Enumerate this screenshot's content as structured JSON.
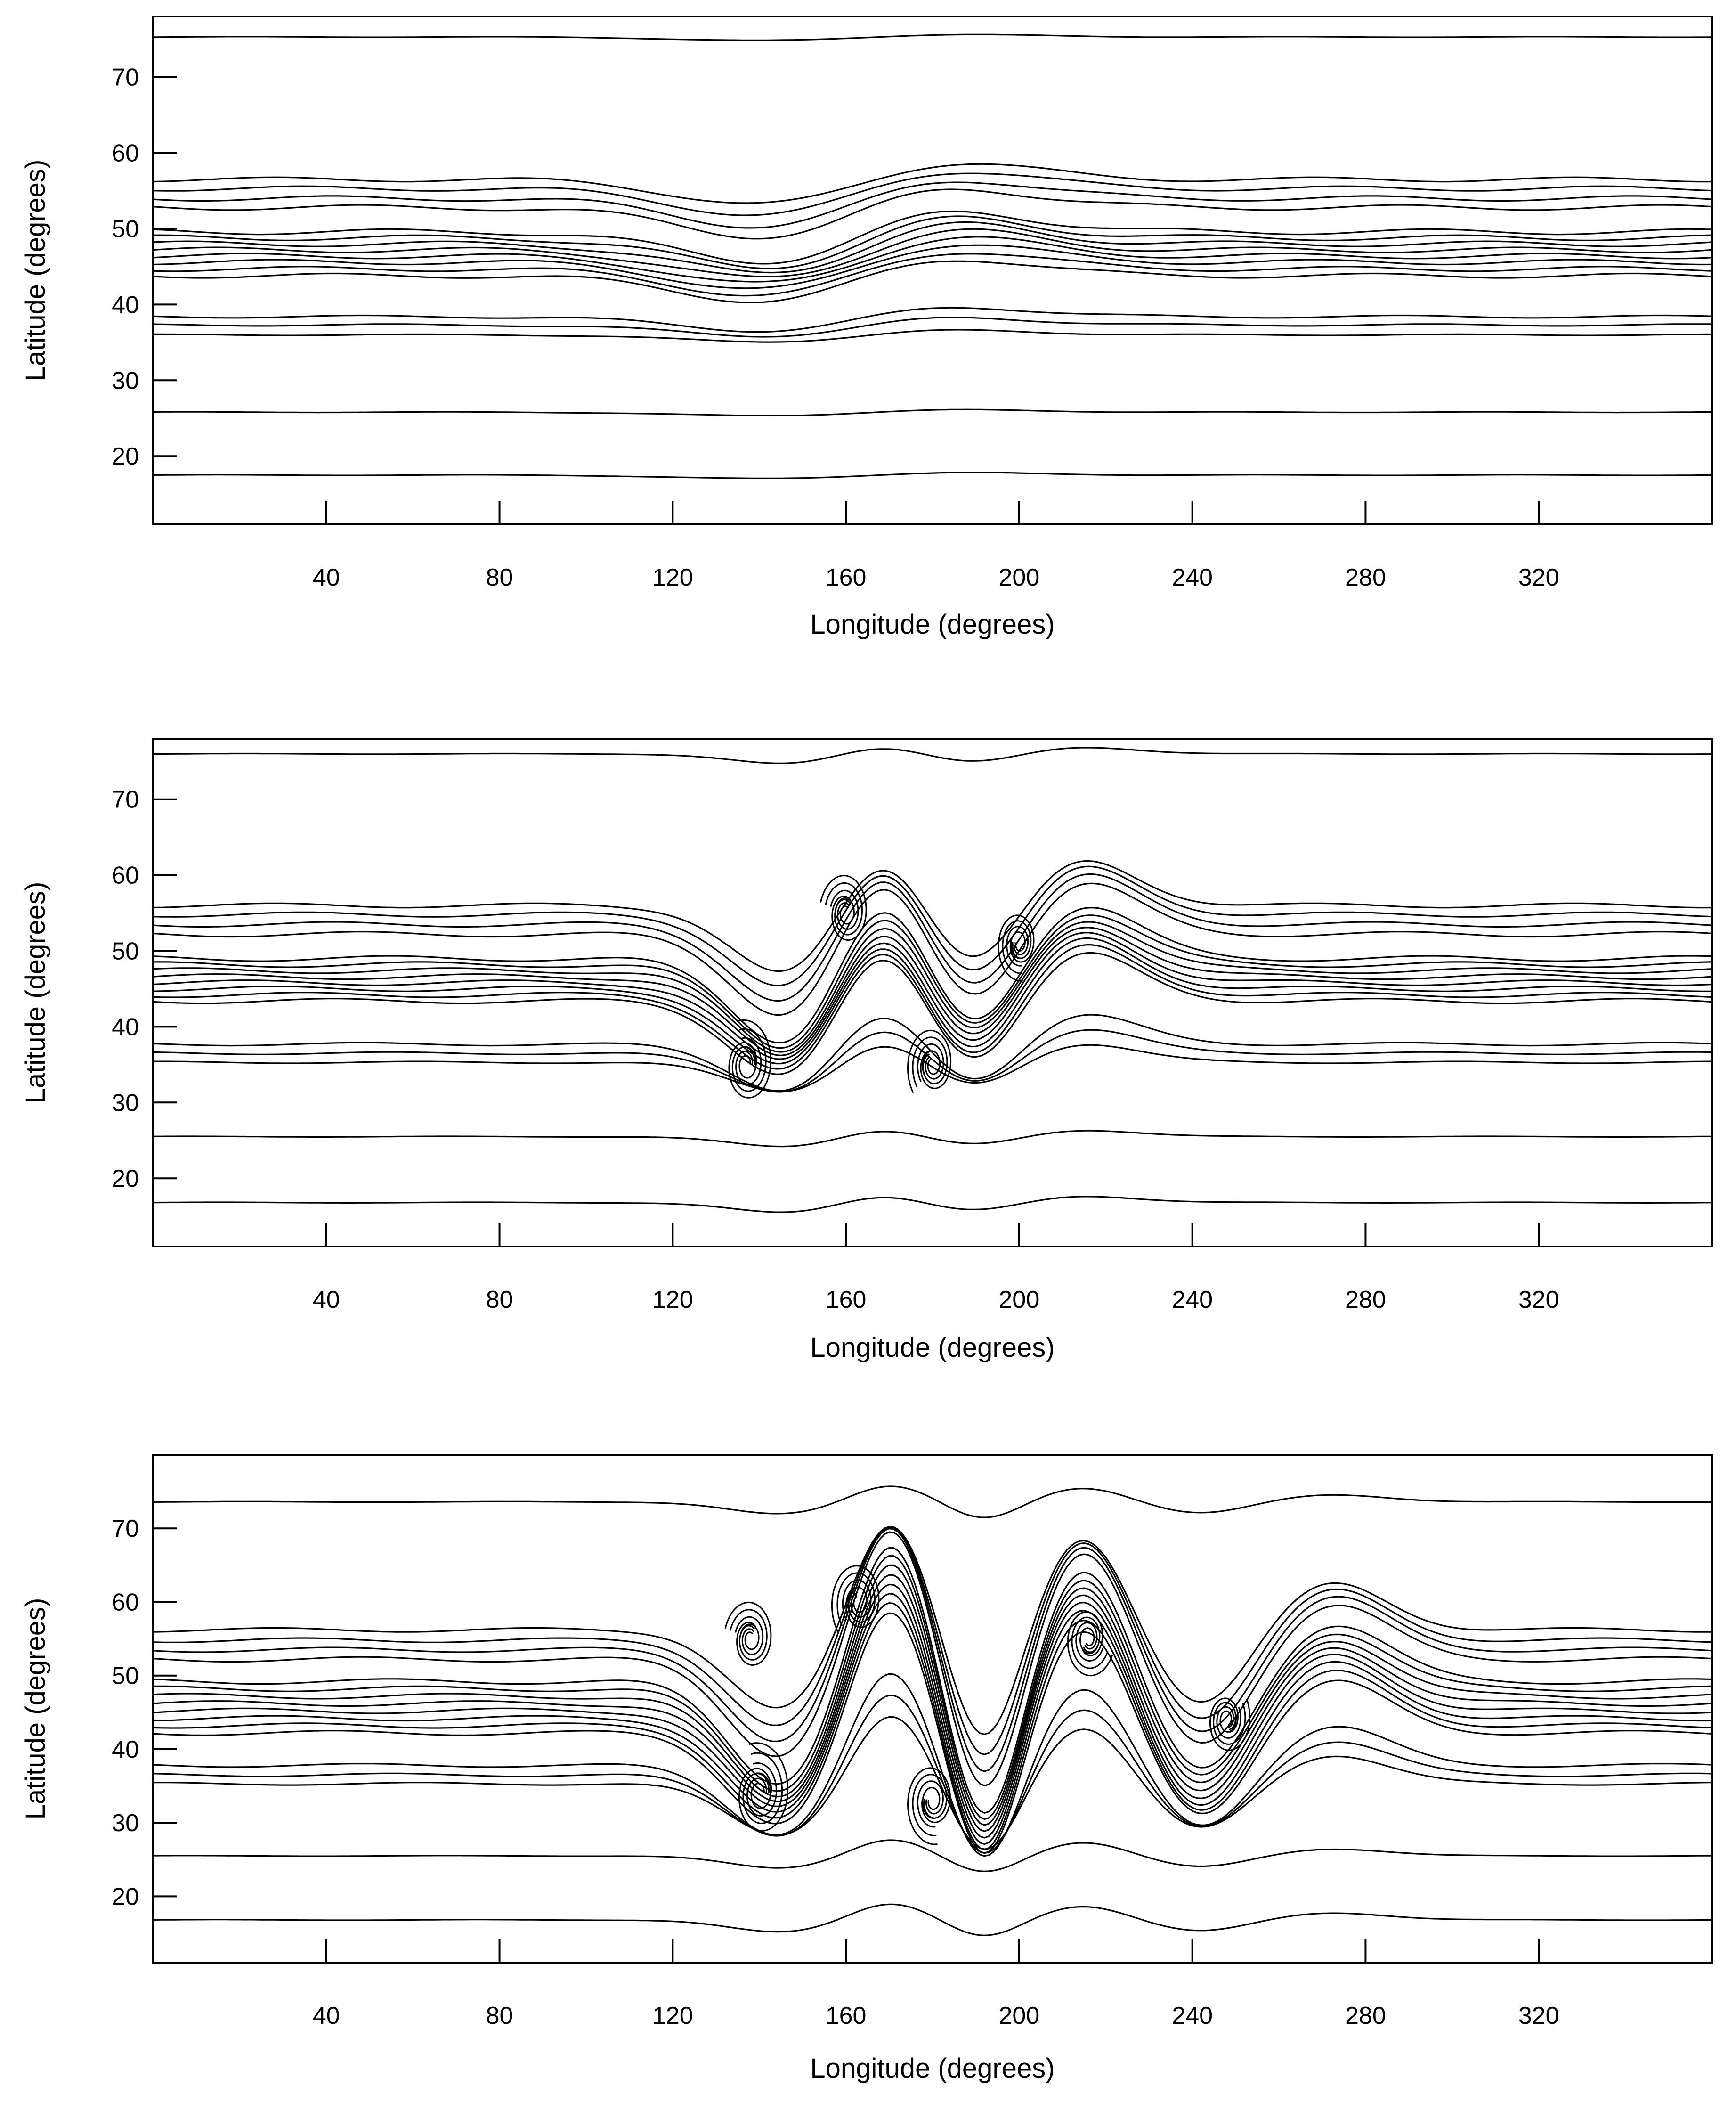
{
  "chart_data": [
    {
      "type": "line",
      "panel": "top",
      "xlabel": "Longitude (degrees)",
      "ylabel": "Latitude (degrees)",
      "xlim": [
        0,
        360
      ],
      "ylim": [
        11,
        78
      ],
      "xticks": [
        40,
        80,
        120,
        160,
        200,
        240,
        280,
        320
      ],
      "yticks": [
        20,
        30,
        40,
        50,
        60,
        70
      ],
      "grid": false,
      "base_latitudes": [
        17.5,
        25.8,
        36.0,
        37.3,
        38.4,
        43.8,
        44.7,
        45.6,
        46.4,
        47.2,
        48.0,
        48.8,
        49.6,
        52.8,
        54.0,
        55.3,
        56.5,
        75.3
      ],
      "disturbances": [
        {
          "center": 145,
          "width": 22,
          "amplitude": -4.5
        },
        {
          "center": 180,
          "width": 20,
          "amplitude": 3.5
        }
      ],
      "jet_band": [
        42,
        58
      ],
      "curls": []
    },
    {
      "type": "line",
      "panel": "middle",
      "xlabel": "Longitude (degrees)",
      "ylabel": "Latitude (degrees)",
      "xlim": [
        0,
        360
      ],
      "ylim": [
        11,
        78
      ],
      "xticks": [
        40,
        80,
        120,
        160,
        200,
        240,
        280,
        320
      ],
      "yticks": [
        20,
        30,
        40,
        50,
        60,
        70
      ],
      "grid": false,
      "base_latitudes": [
        16.8,
        25.5,
        35.3,
        36.5,
        37.7,
        43.4,
        44.2,
        45.0,
        45.8,
        46.6,
        47.4,
        48.2,
        49.0,
        52.2,
        53.5,
        54.8,
        56.0,
        76.0
      ],
      "disturbances": [
        {
          "center": 150,
          "width": 14,
          "amplitude": -14
        },
        {
          "center": 168,
          "width": 12,
          "amplitude": 15
        },
        {
          "center": 188,
          "width": 12,
          "amplitude": -13
        },
        {
          "center": 212,
          "width": 14,
          "amplitude": 8
        }
      ],
      "jet_band": [
        40,
        58
      ],
      "curls": [
        {
          "x": 137,
          "y": 35,
          "r": 6
        },
        {
          "x": 160,
          "y": 55,
          "r": 5.5
        },
        {
          "x": 180,
          "y": 35,
          "r": 5.5
        },
        {
          "x": 200,
          "y": 51,
          "r": 5
        }
      ]
    },
    {
      "type": "line",
      "panel": "bottom",
      "xlabel": "Longitude (degrees)",
      "ylabel": "Latitude (degrees)",
      "xlim": [
        0,
        360
      ],
      "ylim": [
        11,
        80
      ],
      "xticks": [
        40,
        80,
        120,
        160,
        200,
        240,
        280,
        320
      ],
      "yticks": [
        20,
        30,
        40,
        50,
        60,
        70
      ],
      "grid": false,
      "base_latitudes": [
        16.8,
        25.5,
        35.3,
        36.5,
        37.8,
        42.2,
        43.2,
        44.2,
        45.2,
        46.2,
        47.2,
        48.2,
        49.2,
        52.2,
        53.5,
        54.8,
        56.2,
        73.6
      ],
      "disturbances": [
        {
          "center": 145,
          "width": 12,
          "amplitude": -14
        },
        {
          "center": 170,
          "width": 9,
          "amplitude": 20
        },
        {
          "center": 192,
          "width": 8,
          "amplitude": -20
        },
        {
          "center": 215,
          "width": 10,
          "amplitude": 16
        },
        {
          "center": 242,
          "width": 11,
          "amplitude": -13
        },
        {
          "center": 272,
          "width": 13,
          "amplitude": 8
        }
      ],
      "jet_band": [
        38,
        58
      ],
      "curls": [
        {
          "x": 140,
          "y": 34,
          "r": 7
        },
        {
          "x": 138,
          "y": 55,
          "r": 5.5
        },
        {
          "x": 163,
          "y": 60,
          "r": 6
        },
        {
          "x": 180,
          "y": 33,
          "r": 6
        },
        {
          "x": 216,
          "y": 55,
          "r": 5.5
        },
        {
          "x": 248,
          "y": 44,
          "r": 5
        }
      ]
    }
  ]
}
